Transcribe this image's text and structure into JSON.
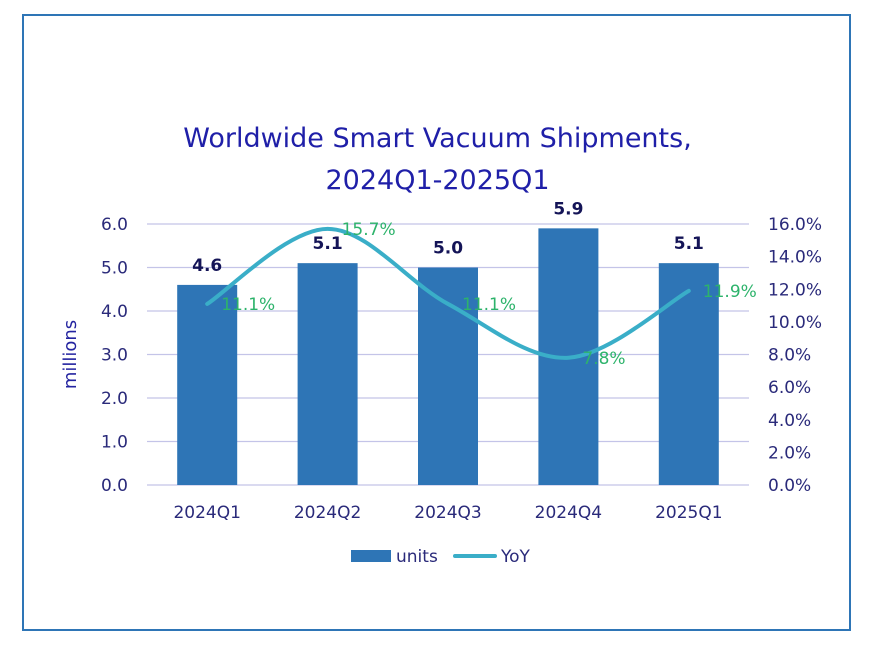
{
  "chart_data": {
    "type": "bar",
    "title_lines": [
      "Worldwide Smart Vacuum Shipments,",
      "2024Q1-2025Q1"
    ],
    "categories": [
      "2024Q1",
      "2024Q2",
      "2024Q3",
      "2024Q4",
      "2025Q1"
    ],
    "series": [
      {
        "name": "units",
        "type": "bar",
        "axis": "left",
        "values": [
          4.6,
          5.1,
          5.0,
          5.9,
          5.1
        ],
        "labels": [
          "4.6",
          "5.1",
          "5.0",
          "5.9",
          "5.1"
        ],
        "color": "#2e75b6"
      },
      {
        "name": "YoY",
        "type": "line",
        "smooth": true,
        "axis": "right",
        "values": [
          11.1,
          15.7,
          11.1,
          7.8,
          11.9
        ],
        "labels": [
          "11.1%",
          "15.7%",
          "11.1%",
          "7.8%",
          "11.9%"
        ],
        "color": "#3aaec8",
        "label_color": "#2db36b"
      }
    ],
    "ylabel": "millions",
    "ylim": [
      0,
      6
    ],
    "yticks": [
      "0.0",
      "1.0",
      "2.0",
      "3.0",
      "4.0",
      "5.0",
      "6.0"
    ],
    "y2lim": [
      0,
      16
    ],
    "y2ticks": [
      "0.0%",
      "2.0%",
      "4.0%",
      "6.0%",
      "8.0%",
      "10.0%",
      "12.0%",
      "14.0%",
      "16.0%"
    ],
    "grid": true,
    "legend": "bottom",
    "colors": {
      "title": "#1f1fa8",
      "grid": "#c4c4e8",
      "frame": "#2e75b6"
    }
  }
}
